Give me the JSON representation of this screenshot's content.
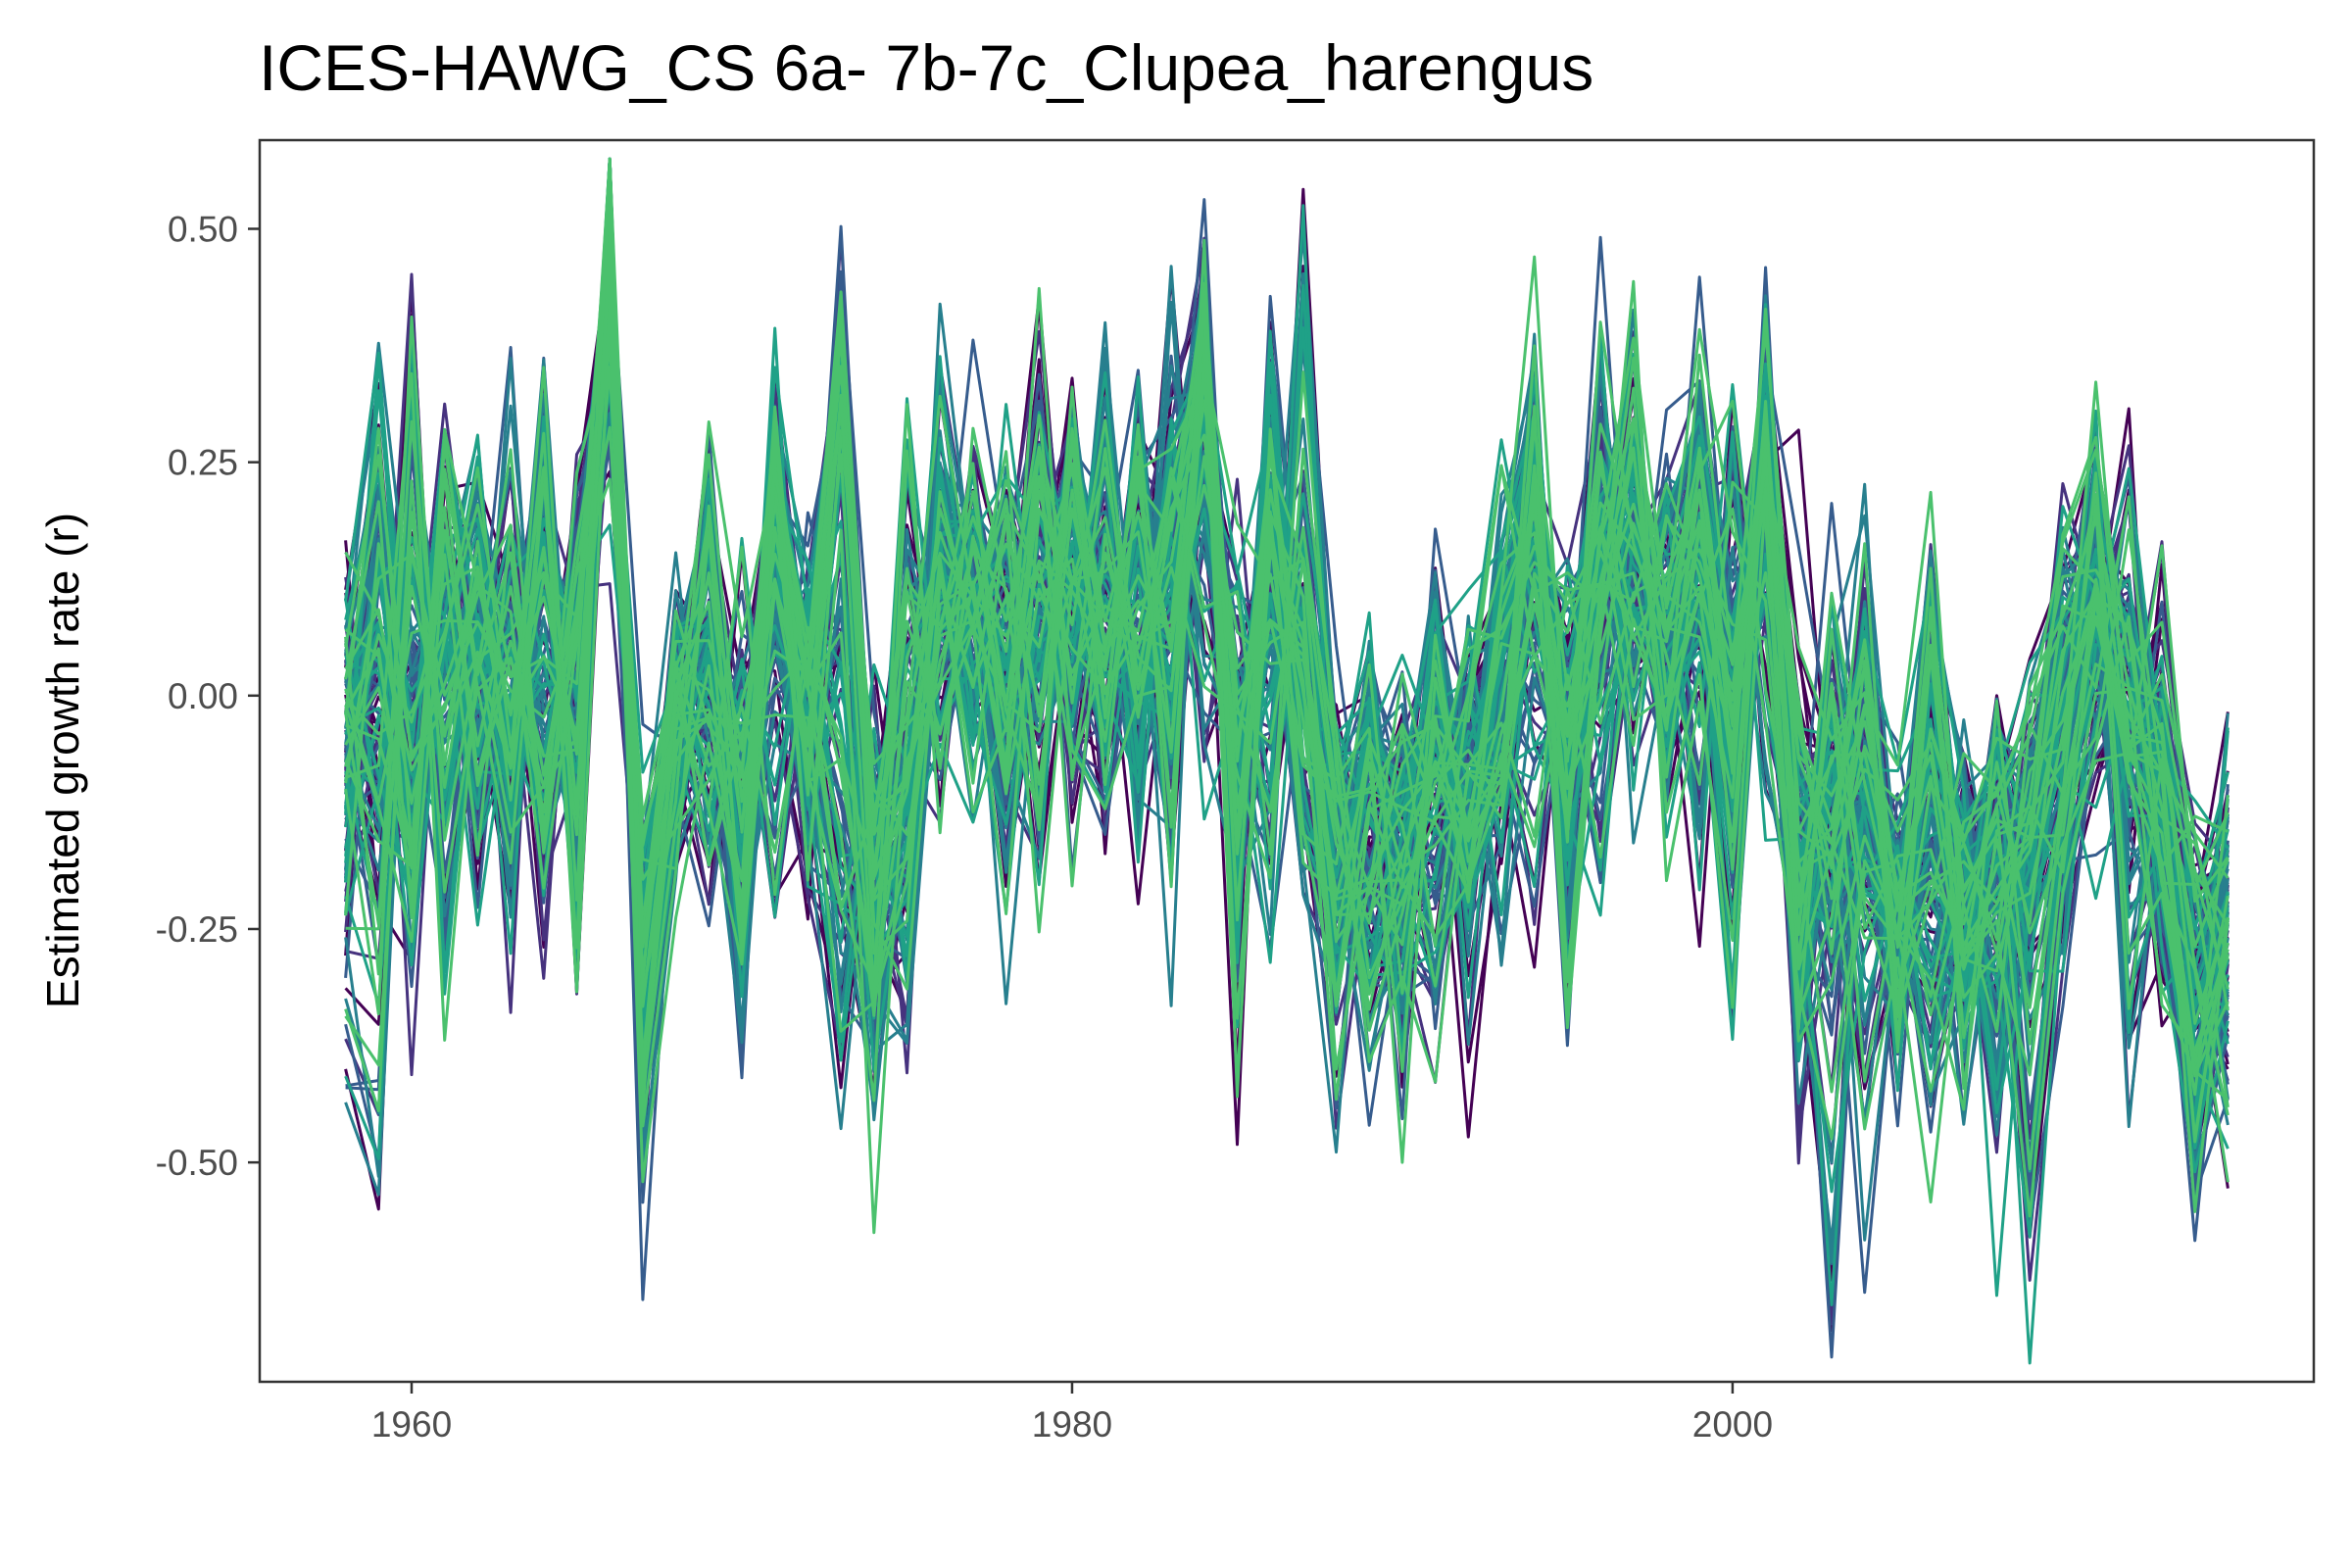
{
  "chart_data": {
    "type": "line",
    "title": "ICES-HAWG_CS 6a- 7b-7c_Clupea_harengus",
    "xlabel": "",
    "ylabel": "Estimated growth rate (r)",
    "x_range": [
      1958,
      2015
    ],
    "xlim": [
      1955.4,
      2017.6
    ],
    "ylim": [
      -0.735,
      0.595
    ],
    "x_ticks": [
      1960,
      1980,
      2000
    ],
    "y_ticks": [
      0.5,
      0.25,
      0.0,
      -0.25,
      -0.5
    ],
    "x_tick_labels": [
      "1960",
      "1980",
      "2000"
    ],
    "y_tick_labels": [
      "0.50",
      "0.25",
      "0.00",
      "-0.25",
      "-0.50"
    ],
    "grid": false,
    "legend": "none",
    "colors": [
      "#440154",
      "#46327e",
      "#365c8d",
      "#277f8e",
      "#1fa187",
      "#4ac16d"
    ],
    "series_note_count": 0,
    "series": [
      {
        "values": [
          0.11,
          -0.08,
          -0.22,
          0.12,
          -0.18,
          0.16,
          -0.2,
          0.18,
          0.24,
          -0.26,
          -0.06,
          -0.18,
          0.04,
          -0.2,
          0.06,
          -0.08,
          -0.3,
          -0.1,
          0.02,
          0.08,
          -0.06,
          0.18,
          0.02,
          -0.04,
          0.1,
          0.06,
          0.2,
          0.02,
          -0.12,
          0.1,
          -0.12,
          -0.28,
          -0.22,
          -0.3,
          -0.12,
          -0.04,
          -0.2,
          0.06,
          -0.2,
          0.12,
          0.02,
          0.1,
          -0.14,
          0.3,
          -0.2,
          -0.06,
          -0.14,
          -0.18,
          -0.22,
          -0.3,
          -0.16,
          -0.58,
          -0.24,
          -0.1,
          0.04,
          -0.3,
          -0.34,
          -0.4
        ]
      },
      {
        "values": [
          0.03,
          0.29,
          -0.14,
          0.02,
          0.24,
          -0.1,
          0.2,
          -0.16,
          0.53,
          -0.36,
          0.04,
          -0.02,
          -0.14,
          0.14,
          -0.1,
          -0.42,
          -0.08,
          -0.22,
          0.32,
          0.1,
          -0.2,
          0.08,
          -0.02,
          0.34,
          -0.06,
          0.3,
          -0.06,
          0.04,
          -0.18,
          0.46,
          -0.1,
          -0.34,
          -0.28,
          -0.02,
          -0.2,
          0.08,
          0.3,
          -0.16,
          0.06,
          0.2,
          -0.06,
          0.22,
          -0.1,
          0.24,
          -0.3,
          -0.2,
          0.08,
          -0.24,
          0.08,
          -0.16,
          -0.44,
          -0.16,
          -0.02,
          0.24,
          -0.36,
          -0.16,
          -0.44,
          -0.12
        ]
      },
      {
        "values": [
          -0.09,
          -0.22,
          0.38,
          -0.28,
          0.06,
          -0.22,
          0.32,
          -0.26,
          0.48,
          -0.4,
          -0.18,
          0.06,
          -0.26,
          0.28,
          0.04,
          -0.2,
          -0.34,
          0.24,
          -0.08,
          0.16,
          0.04,
          -0.12,
          0.26,
          -0.08,
          0.22,
          -0.2,
          0.44,
          -0.34,
          0.4,
          -0.1,
          -0.14,
          -0.02,
          -0.38,
          0.04,
          -0.3,
          -0.08,
          0.22,
          -0.28,
          0.14,
          0.36,
          -0.12,
          0.08,
          -0.26,
          0.36,
          -0.36,
          0.06,
          -0.2,
          -0.3,
          0.04,
          -0.36,
          -0.08,
          -0.28,
          -0.22,
          0.02,
          0.08,
          -0.14,
          -0.5,
          -0.3
        ]
      },
      {
        "values": [
          -0.4,
          -0.55,
          0.3,
          -0.14,
          0.1,
          -0.2,
          0.22,
          -0.08,
          0.46,
          -0.34,
          -0.04,
          0.1,
          -0.26,
          0.22,
          -0.1,
          0.06,
          -0.4,
          -0.1,
          0.18,
          0.02,
          0.14,
          -0.1,
          0.16,
          0.02,
          0.3,
          -0.06,
          0.4,
          -0.2,
          0.06,
          0.12,
          -0.18,
          -0.04,
          -0.12,
          -0.26,
          0.02,
          -0.18,
          0.1,
          -0.02,
          0.38,
          -0.04,
          0.18,
          -0.2,
          0.32,
          -0.1,
          -0.2,
          -0.68,
          -0.04,
          -0.2,
          -0.44,
          -0.26,
          0.0,
          -0.2,
          -0.1,
          0.12,
          -0.12,
          -0.1,
          -0.44,
          -0.34
        ]
      },
      {
        "values": [
          -0.06,
          0.02,
          -0.16,
          0.2,
          0.04,
          0.18,
          -0.12,
          0.14,
          0.38,
          -0.2,
          0.02,
          0.14,
          -0.1,
          0.26,
          0.02,
          0.42,
          -0.22,
          0.12,
          -0.04,
          0.22,
          0.04,
          0.36,
          -0.08,
          0.18,
          -0.06,
          0.16,
          0.42,
          -0.04,
          0.26,
          0.06,
          -0.22,
          -0.14,
          -0.02,
          -0.16,
          0.04,
          0.12,
          0.18,
          0.0,
          0.14,
          0.26,
          0.02,
          0.24,
          -0.06,
          0.32,
          0.04,
          -0.14,
          0.02,
          -0.3,
          -0.06,
          -0.2,
          -0.12,
          -0.04,
          0.12,
          0.2,
          -0.08,
          0.1,
          -0.22,
          -0.16
        ]
      },
      {
        "values": [
          -0.2,
          0.22,
          -0.08,
          0.08,
          -0.02,
          0.24,
          -0.18,
          0.06,
          0.55,
          -0.44,
          -0.1,
          0.24,
          -0.2,
          0.12,
          -0.06,
          0.4,
          -0.26,
          -0.34,
          0.16,
          -0.02,
          0.22,
          0.08,
          0.34,
          -0.04,
          0.18,
          0.24,
          0.36,
          -0.14,
          0.18,
          -0.1,
          -0.34,
          -0.06,
          -0.2,
          0.04,
          -0.16,
          0.06,
          0.26,
          -0.08,
          0.2,
          0.1,
          0.14,
          0.3,
          0.06,
          0.14,
          -0.38,
          -0.14,
          -0.46,
          -0.18,
          -0.34,
          -0.12,
          -0.28,
          -0.06,
          0.08,
          0.04,
          0.22,
          -0.2,
          -0.26,
          -0.36
        ]
      },
      {
        "values": [
          0.02,
          -0.1,
          0.06,
          -0.04,
          0.1,
          -0.06,
          0.14,
          0.0,
          0.44,
          -0.3,
          0.08,
          -0.06,
          0.02,
          0.1,
          0.04,
          0.34,
          -0.12,
          -0.06,
          0.1,
          0.02,
          0.12,
          0.0,
          0.14,
          0.06,
          0.08,
          0.02,
          0.3,
          0.0,
          0.12,
          0.04,
          -0.08,
          -0.18,
          -0.1,
          -0.06,
          -0.14,
          0.02,
          0.08,
          -0.02,
          0.1,
          0.12,
          0.06,
          0.16,
          0.0,
          0.22,
          -0.06,
          -0.12,
          -0.08,
          -0.2,
          -0.16,
          -0.22,
          -0.18,
          -0.1,
          0.0,
          0.08,
          0.0,
          -0.12,
          -0.2,
          -0.18
        ]
      },
      {
        "values": [
          -0.14,
          0.12,
          -0.04,
          0.16,
          -0.1,
          0.06,
          0.2,
          -0.12,
          0.4,
          -0.22,
          -0.02,
          0.06,
          -0.08,
          0.18,
          -0.02,
          0.3,
          -0.16,
          -0.04,
          0.14,
          0.08,
          0.02,
          0.12,
          0.06,
          0.14,
          0.02,
          0.1,
          0.34,
          -0.08,
          0.16,
          0.0,
          -0.2,
          -0.1,
          -0.16,
          -0.02,
          -0.1,
          0.08,
          0.14,
          -0.06,
          0.16,
          0.08,
          0.1,
          0.22,
          -0.02,
          0.26,
          -0.12,
          -0.2,
          -0.14,
          -0.26,
          -0.1,
          -0.28,
          -0.22,
          -0.14,
          -0.04,
          0.1,
          0.02,
          -0.06,
          -0.3,
          -0.22
        ]
      }
    ]
  }
}
